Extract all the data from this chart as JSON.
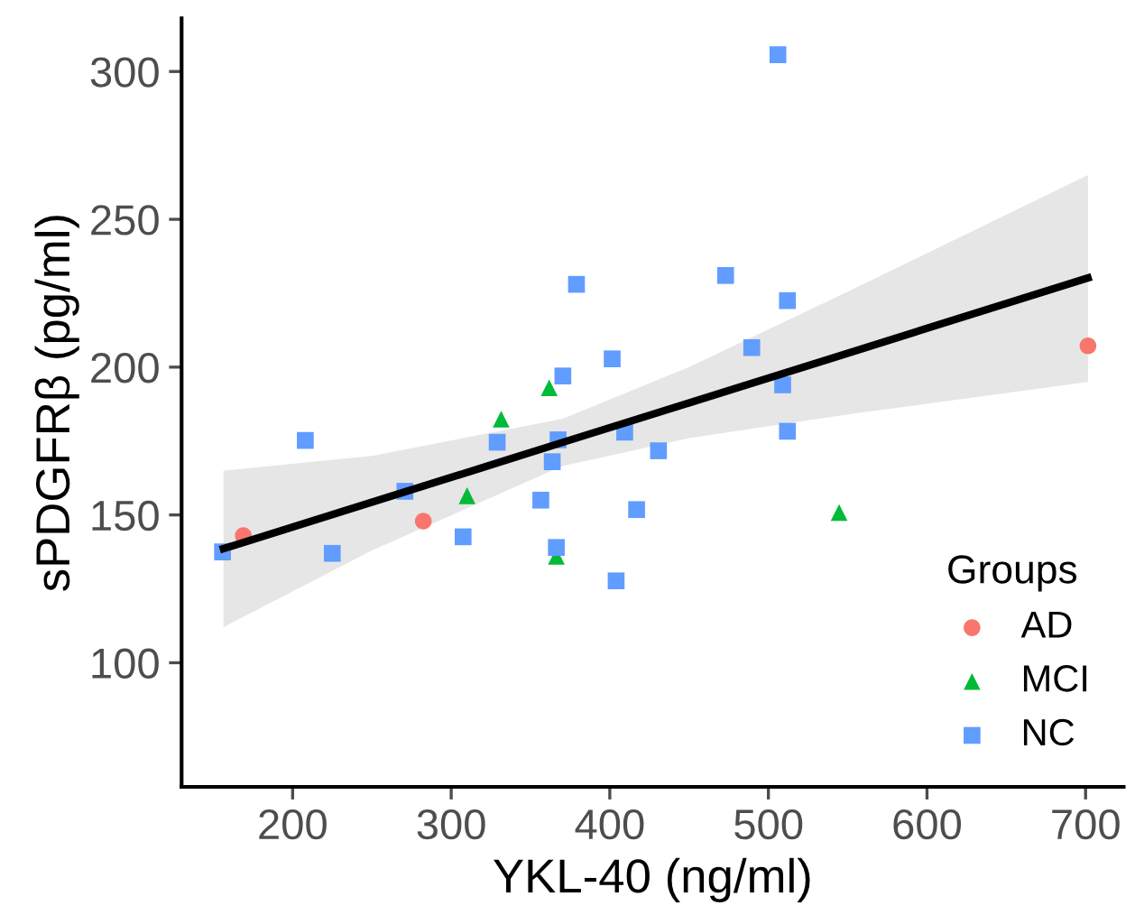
{
  "chart_data": {
    "type": "scatter",
    "xlabel": "YKL-40 (ng/ml)",
    "ylabel": "sPDGFRβ (pg/ml)",
    "legend_title": "Groups",
    "legend": "bottom right",
    "grid": false,
    "xlim": [
      130,
      724
    ],
    "ylim": [
      58,
      318
    ],
    "xticks": [
      200,
      300,
      400,
      500,
      600,
      700
    ],
    "yticks": [
      100,
      150,
      200,
      250,
      300
    ],
    "series": [
      {
        "type": "line",
        "color": "#000000",
        "marker": "none",
        "line_style": "solid",
        "x": [
          156.4,
          250,
          370,
          450,
          550,
          701.5
        ],
        "values": [
          138.6,
          154.3,
          174.5,
          187.9,
          204.7,
          230.2
        ],
        "lower": [
          112,
          138,
          166.5,
          176,
          184,
          195
        ],
        "upper": [
          165,
          170,
          182.5,
          200,
          225.5,
          265
        ]
      },
      {
        "name": "AD",
        "color": "#f8766d",
        "marker": "circle",
        "x": [
          168.9,
          282.4,
          701.5
        ],
        "values": [
          143,
          147.9,
          207.2
        ]
      },
      {
        "name": "MCI",
        "color": "#00ba38",
        "marker": "triangle",
        "x": [
          310,
          331.5,
          361.8,
          366.3,
          544.6
        ],
        "values": [
          156.5,
          182.4,
          193,
          136,
          150.8
        ]
      },
      {
        "name": "NC",
        "color": "#619cff",
        "marker": "square",
        "x": [
          155.8,
          208,
          225,
          270.8,
          307.5,
          329,
          356.5,
          363.7,
          367.4,
          370.4,
          366.3,
          379,
          401.5,
          409.4,
          404,
          416.9,
          506,
          473,
          512,
          489.5,
          509,
          512,
          430.7
        ],
        "values": [
          137.5,
          175.2,
          137,
          158,
          142.6,
          174.6,
          155,
          168,
          175.4,
          197,
          139,
          228,
          202.8,
          178,
          127.7,
          151.8,
          305.7,
          231,
          222.5,
          206.6,
          194,
          178.3,
          171.7
        ]
      }
    ]
  }
}
